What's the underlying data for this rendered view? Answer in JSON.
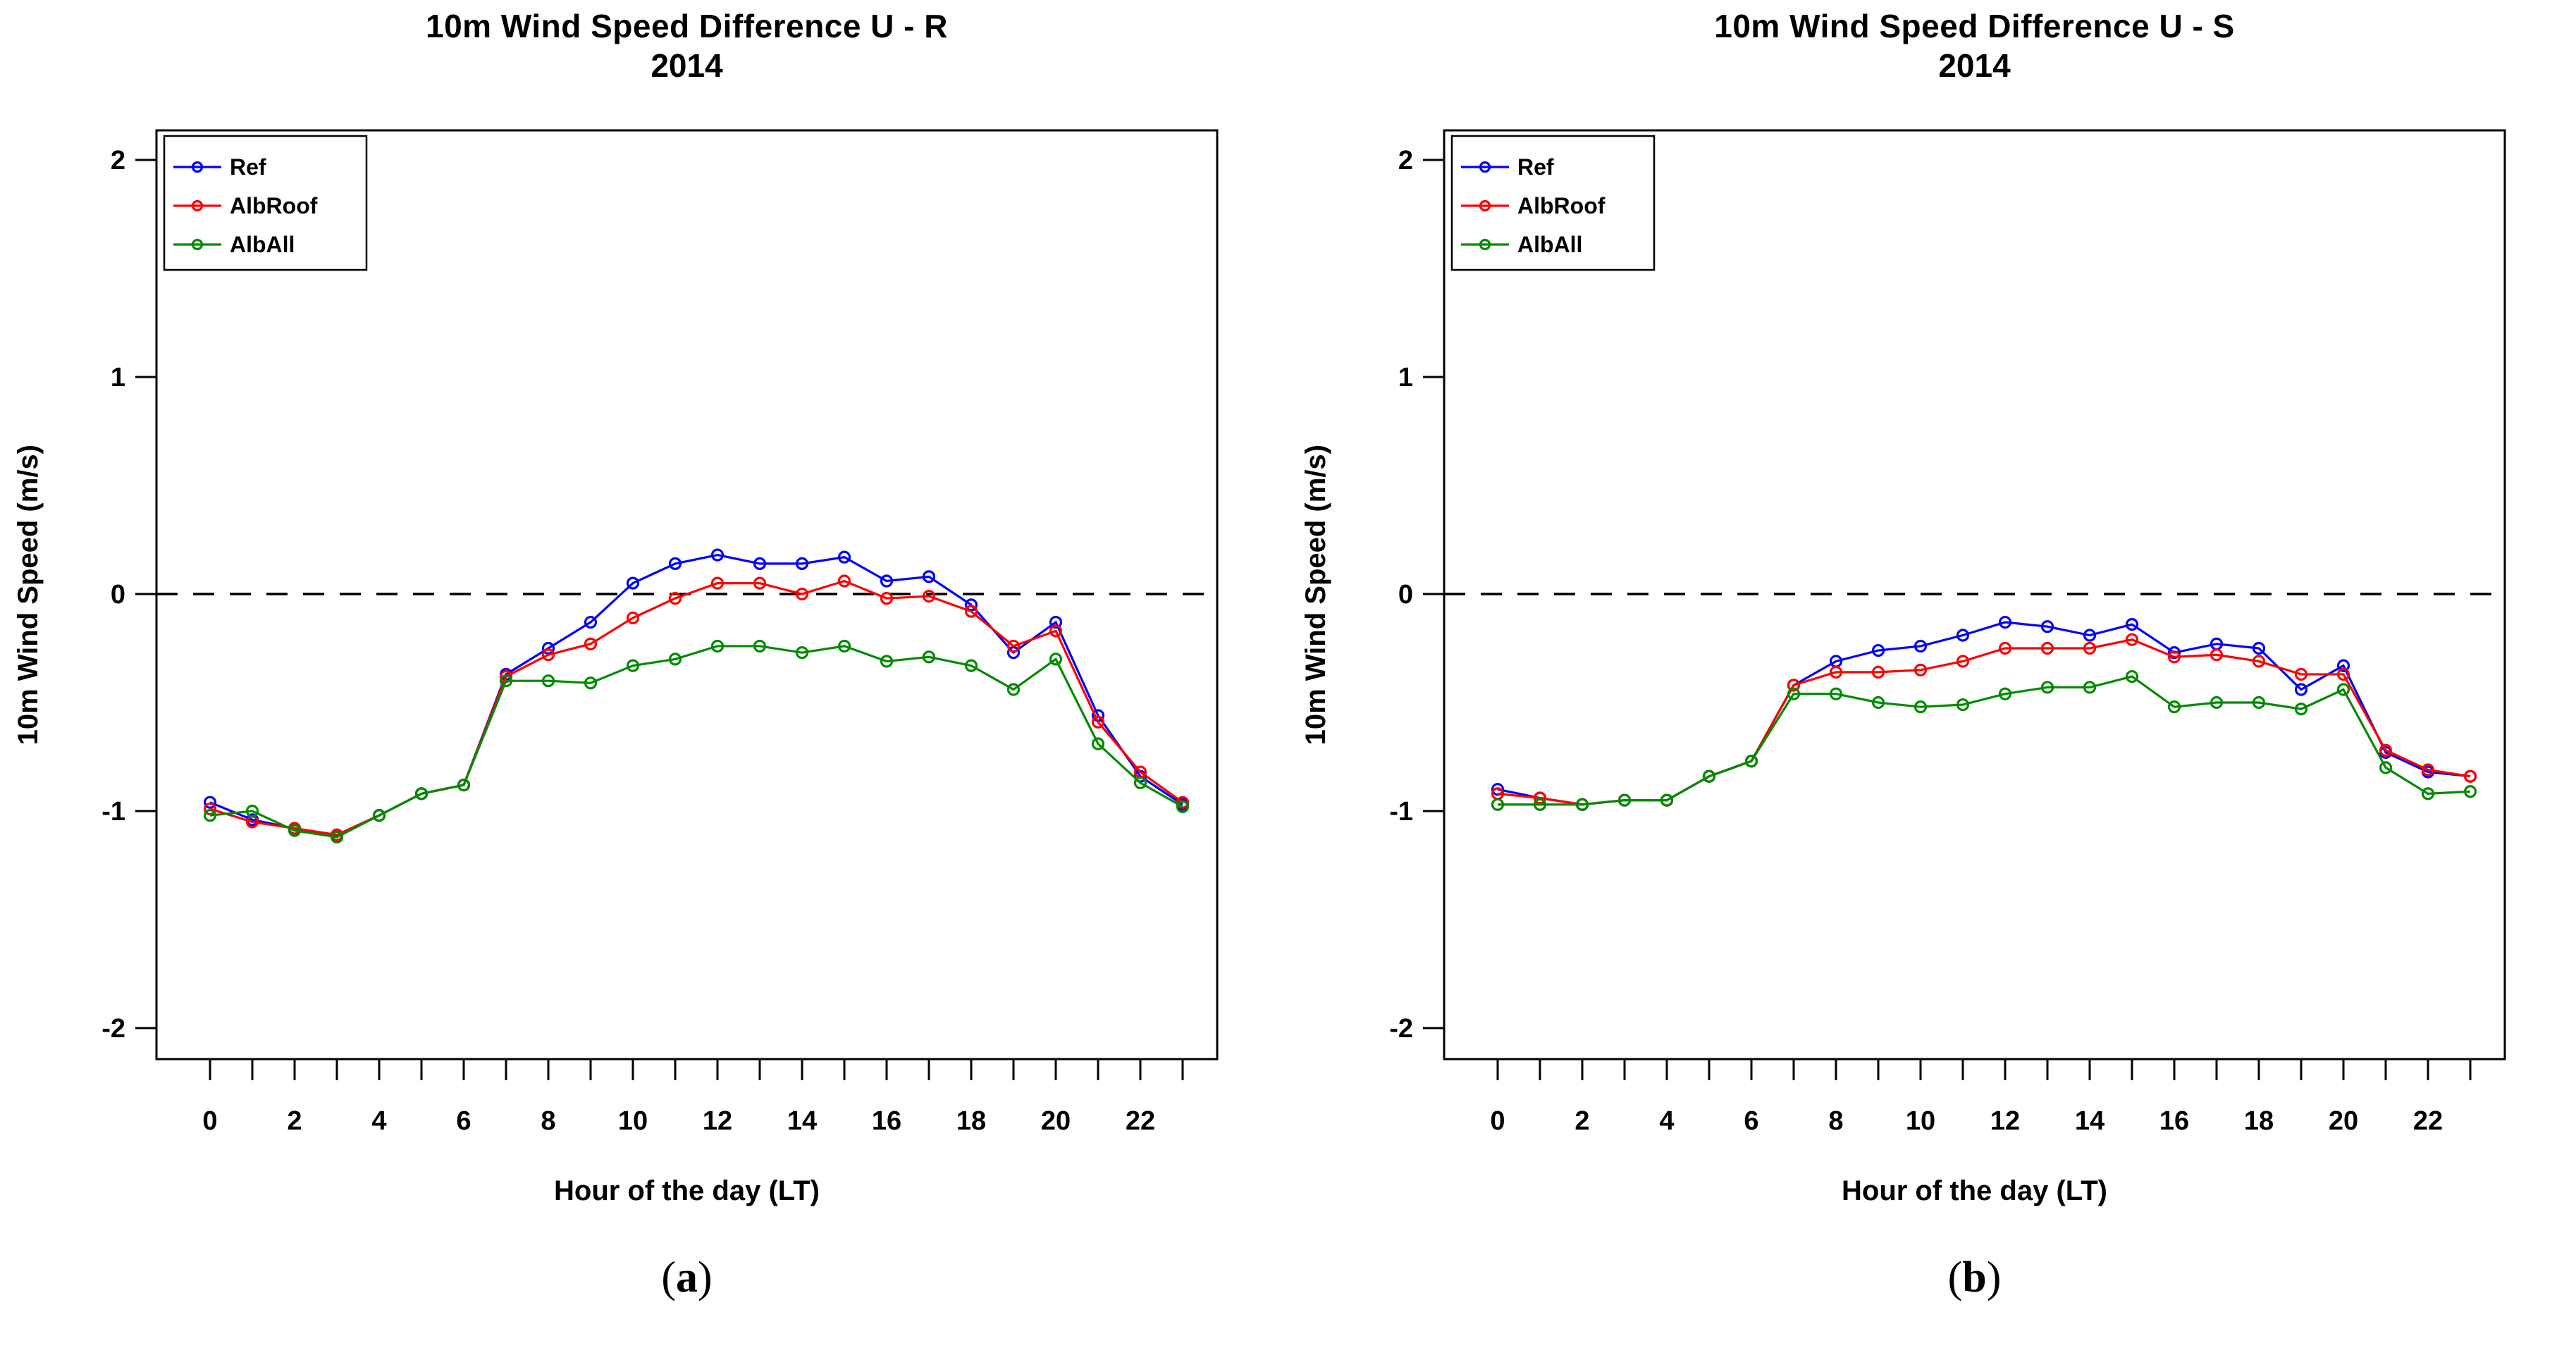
{
  "page": {
    "background": "#ffffff",
    "text_color": "#000000"
  },
  "figure": {
    "captions": [
      {
        "open": "(",
        "letter": "a",
        "close": ")"
      },
      {
        "open": "(",
        "letter": "b",
        "close": ")"
      }
    ]
  },
  "chart_data": [
    {
      "id": "a",
      "type": "line",
      "title": "10m Wind Speed Difference U - R",
      "subtitle": "2014",
      "xlabel": "Hour of the day (LT)",
      "ylabel": "10m Wind Speed (m/s)",
      "x": [
        0,
        1,
        2,
        3,
        4,
        5,
        6,
        7,
        8,
        9,
        10,
        11,
        12,
        13,
        14,
        15,
        16,
        17,
        18,
        19,
        20,
        21,
        22,
        23
      ],
      "x_tick_labels": [
        "0",
        "2",
        "4",
        "6",
        "8",
        "10",
        "12",
        "14",
        "16",
        "18",
        "20",
        "22"
      ],
      "x_label_hours": [
        0,
        2,
        4,
        6,
        8,
        10,
        12,
        14,
        16,
        18,
        20,
        22
      ],
      "y_ticks": [
        2,
        1,
        0,
        -1,
        -2
      ],
      "y_tick_labels": [
        "2",
        "1",
        "0",
        "-1",
        "-2"
      ],
      "ylim": [
        -2.14,
        2.14
      ],
      "grid": false,
      "zero_line": {
        "y": 0,
        "style": "dashed",
        "color": "#000000"
      },
      "legend": {
        "position": "top-left",
        "entries": [
          "Ref",
          "AlbRoof",
          "AlbAll"
        ]
      },
      "marker": "open-circle",
      "series": [
        {
          "name": "Ref",
          "color": "#0000ff",
          "values": [
            -0.96,
            -1.04,
            -1.08,
            -1.11,
            -1.02,
            -0.92,
            -0.88,
            -0.37,
            -0.25,
            -0.13,
            0.05,
            0.14,
            0.18,
            0.14,
            0.14,
            0.17,
            0.06,
            0.08,
            -0.05,
            -0.27,
            -0.13,
            -0.56,
            -0.84,
            -0.97
          ]
        },
        {
          "name": "AlbRoof",
          "color": "#ff0000",
          "values": [
            -0.99,
            -1.05,
            -1.08,
            -1.11,
            -1.02,
            -0.92,
            -0.88,
            -0.38,
            -0.28,
            -0.23,
            -0.11,
            -0.02,
            0.05,
            0.05,
            0.0,
            0.06,
            -0.02,
            -0.01,
            -0.08,
            -0.24,
            -0.17,
            -0.59,
            -0.82,
            -0.96
          ]
        },
        {
          "name": "AlbAll",
          "color": "#008b00",
          "values": [
            -1.02,
            -1.0,
            -1.09,
            -1.12,
            -1.02,
            -0.92,
            -0.88,
            -0.4,
            -0.4,
            -0.41,
            -0.33,
            -0.3,
            -0.24,
            -0.24,
            -0.27,
            -0.24,
            -0.31,
            -0.29,
            -0.33,
            -0.44,
            -0.3,
            -0.69,
            -0.87,
            -0.98
          ]
        }
      ]
    },
    {
      "id": "b",
      "type": "line",
      "title": "10m Wind Speed Difference U - S",
      "subtitle": "2014",
      "xlabel": "Hour of the day (LT)",
      "ylabel": "10m Wind Speed (m/s)",
      "x": [
        0,
        1,
        2,
        3,
        4,
        5,
        6,
        7,
        8,
        9,
        10,
        11,
        12,
        13,
        14,
        15,
        16,
        17,
        18,
        19,
        20,
        21,
        22,
        23
      ],
      "x_tick_labels": [
        "0",
        "2",
        "4",
        "6",
        "8",
        "10",
        "12",
        "14",
        "16",
        "18",
        "20",
        "22"
      ],
      "x_label_hours": [
        0,
        2,
        4,
        6,
        8,
        10,
        12,
        14,
        16,
        18,
        20,
        22
      ],
      "y_ticks": [
        2,
        1,
        0,
        -1,
        -2
      ],
      "y_tick_labels": [
        "2",
        "1",
        "0",
        "-1",
        "-2"
      ],
      "ylim": [
        -2.14,
        2.14
      ],
      "grid": false,
      "zero_line": {
        "y": 0,
        "style": "dashed",
        "color": "#000000"
      },
      "legend": {
        "position": "top-left",
        "entries": [
          "Ref",
          "AlbRoof",
          "AlbAll"
        ]
      },
      "marker": "open-circle",
      "series": [
        {
          "name": "Ref",
          "color": "#0000ff",
          "values": [
            -0.9,
            -0.94,
            -0.97,
            -0.95,
            -0.95,
            -0.84,
            -0.77,
            -0.42,
            -0.31,
            -0.26,
            -0.24,
            -0.19,
            -0.13,
            -0.15,
            -0.19,
            -0.14,
            -0.27,
            -0.23,
            -0.25,
            -0.44,
            -0.33,
            -0.73,
            -0.82,
            -0.84
          ]
        },
        {
          "name": "AlbRoof",
          "color": "#ff0000",
          "values": [
            -0.92,
            -0.94,
            -0.97,
            -0.95,
            -0.95,
            -0.84,
            -0.77,
            -0.42,
            -0.36,
            -0.36,
            -0.35,
            -0.31,
            -0.25,
            -0.25,
            -0.25,
            -0.21,
            -0.29,
            -0.28,
            -0.31,
            -0.37,
            -0.37,
            -0.72,
            -0.81,
            -0.84
          ]
        },
        {
          "name": "AlbAll",
          "color": "#008b00",
          "values": [
            -0.97,
            -0.97,
            -0.97,
            -0.95,
            -0.95,
            -0.84,
            -0.77,
            -0.46,
            -0.46,
            -0.5,
            -0.52,
            -0.51,
            -0.46,
            -0.43,
            -0.43,
            -0.38,
            -0.52,
            -0.5,
            -0.5,
            -0.53,
            -0.44,
            -0.8,
            -0.92,
            -0.91
          ]
        }
      ]
    }
  ]
}
